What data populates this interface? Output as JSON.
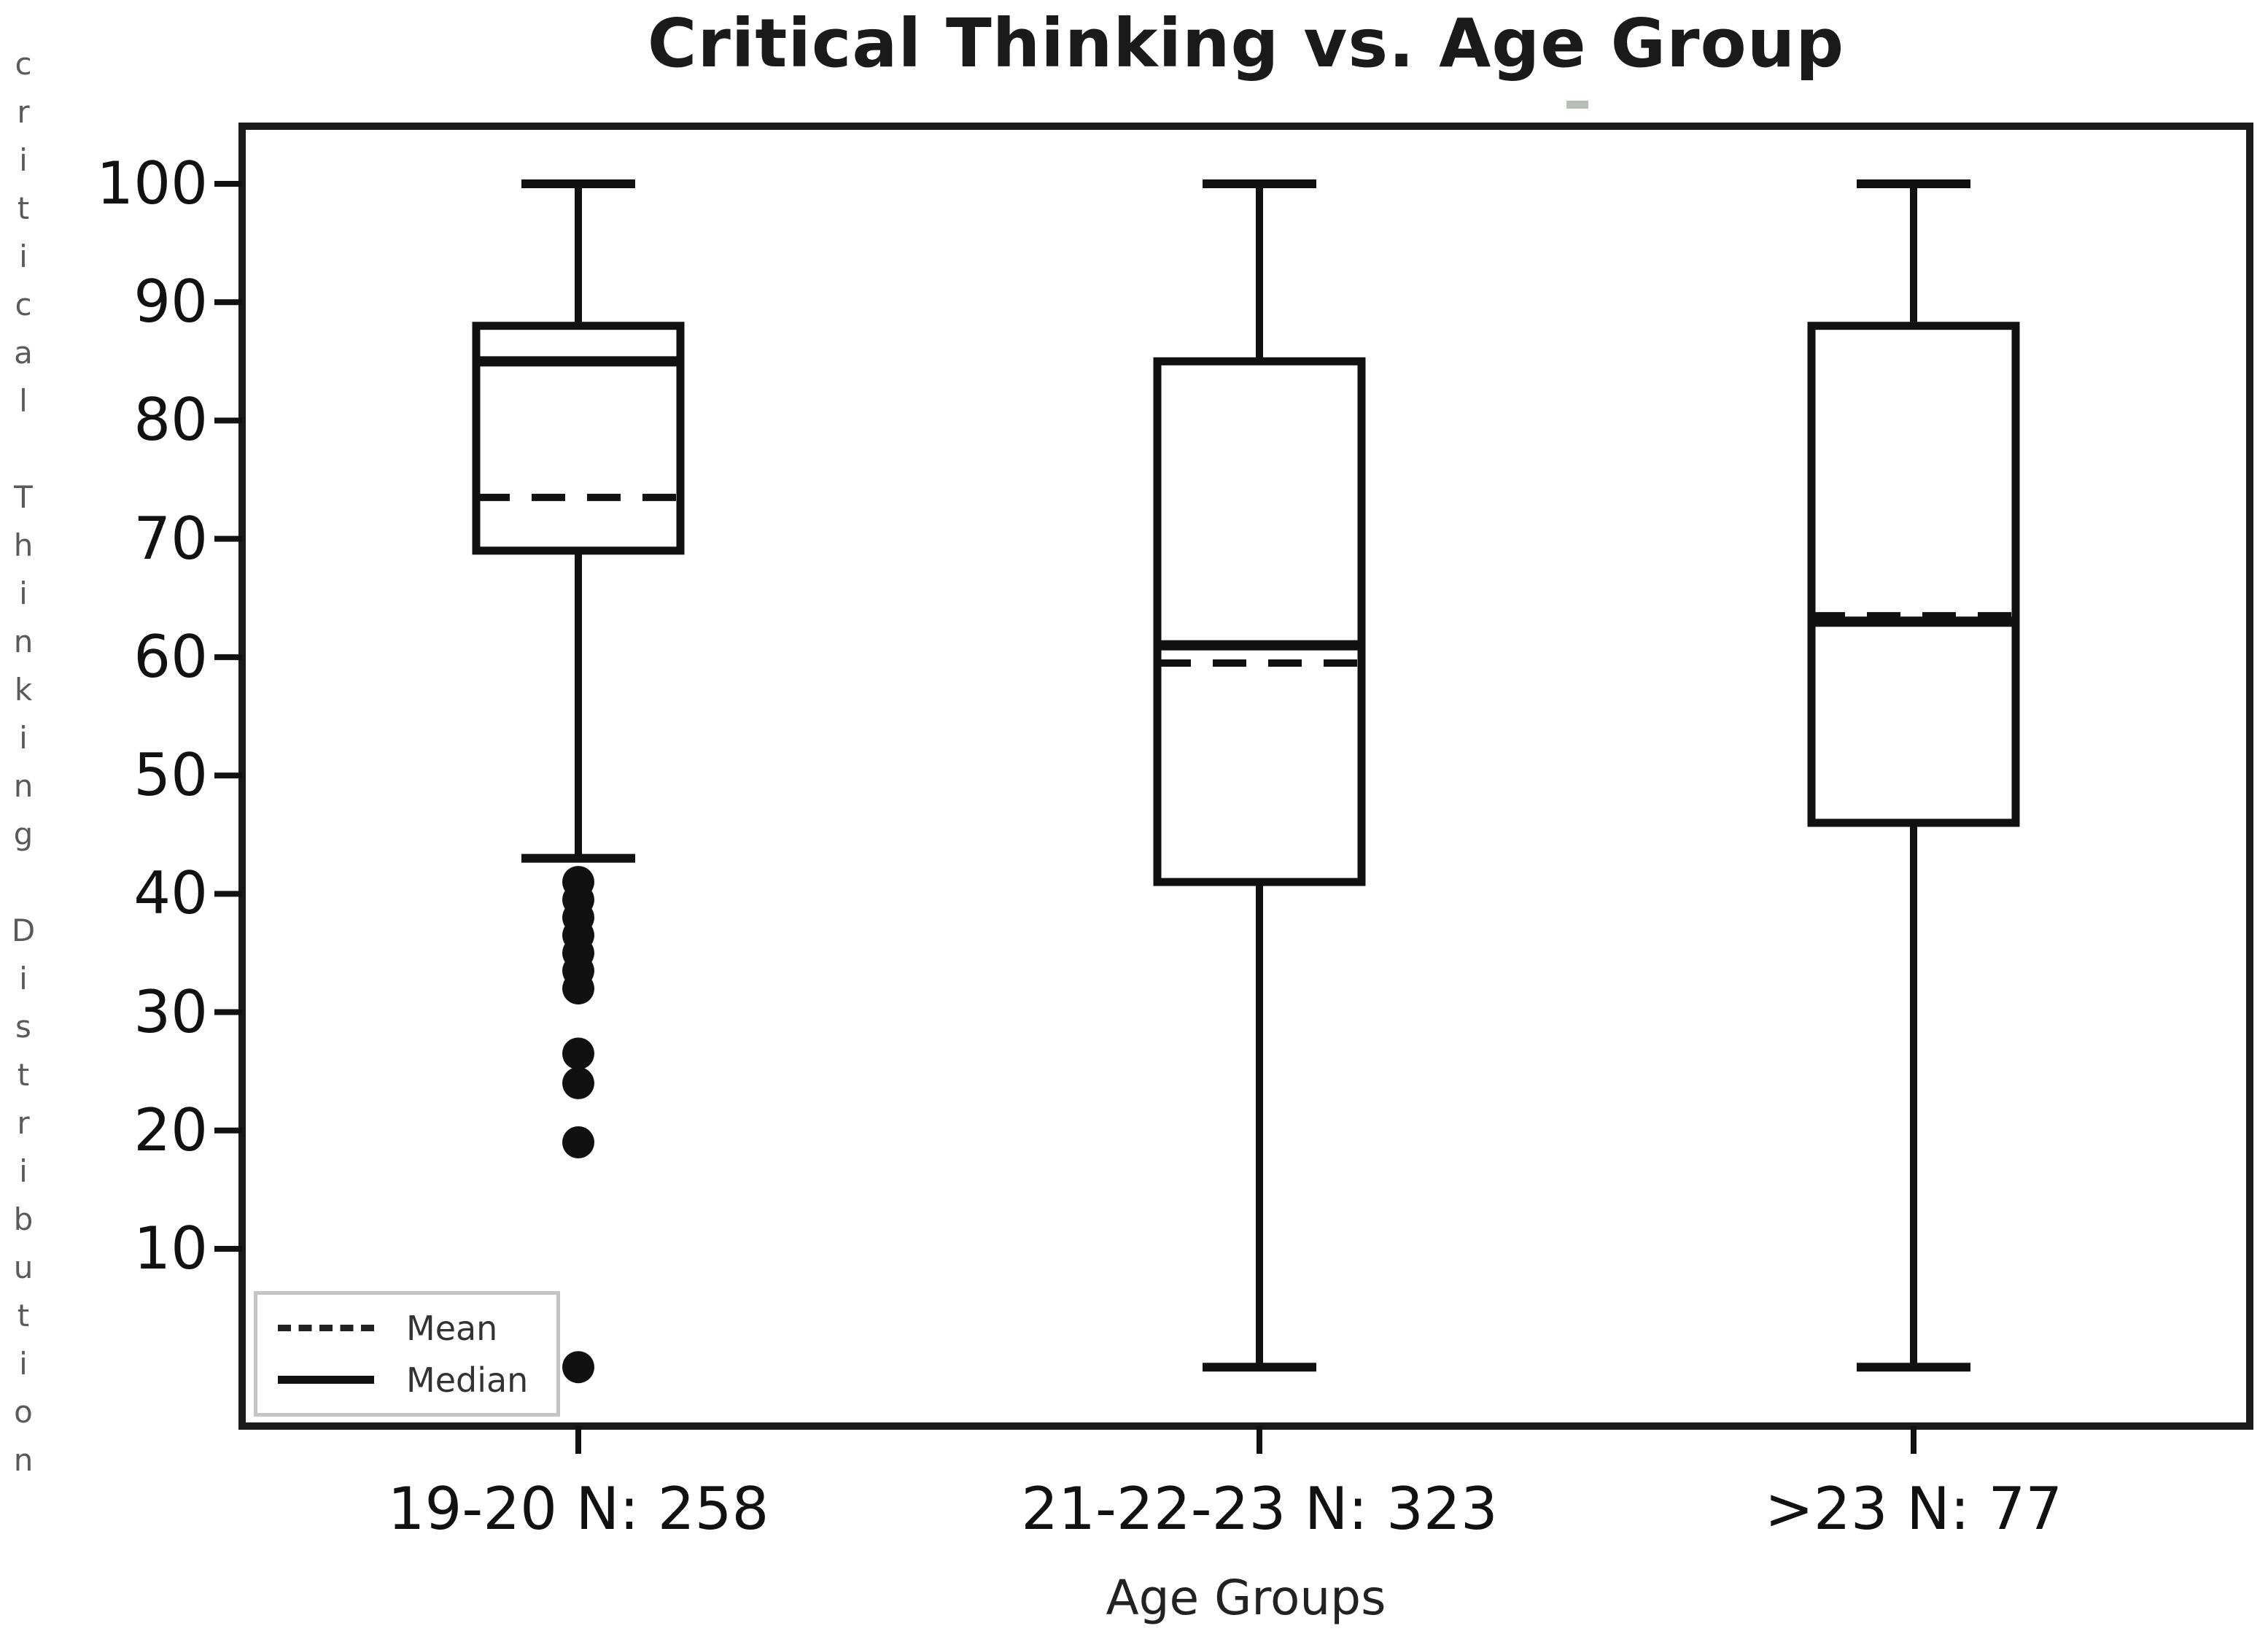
{
  "figure": {
    "background": "#ffffff",
    "line_color": "#111111",
    "spine_color": "#1a1a1a",
    "legend_border_color": "#c4c4c4",
    "ylabel_letter_color": "#5a5a5a"
  },
  "legend": {
    "mean_label": "Mean",
    "median_label": "Median",
    "position": "lower left",
    "mean_style": "dashed",
    "median_style": "solid"
  },
  "chart_data": {
    "type": "boxplot",
    "title": "Critical Thinking vs. Age Group",
    "xlabel": "Age Groups",
    "ylabel": "critical Thinking Distribution",
    "y_ticks": [
      100,
      90,
      80,
      70,
      60,
      50,
      40,
      30,
      20,
      10
    ],
    "ylim": [
      -5,
      105
    ],
    "grid": false,
    "legend_entries": [
      "Mean",
      "Median"
    ],
    "groups": [
      {
        "label": "19-20 N: 258",
        "n": 258,
        "whisker_low": 43,
        "q1": 69,
        "median": 85,
        "mean": 73.5,
        "q3": 88,
        "whisker_high": 100,
        "outliers": [
          41,
          39.5,
          38,
          36.5,
          35,
          33.5,
          32,
          26.5,
          24,
          19,
          0
        ]
      },
      {
        "label": "21-22-23 N: 323",
        "n": 323,
        "whisker_low": 0,
        "q1": 41,
        "median": 61,
        "mean": 59.5,
        "q3": 85,
        "whisker_high": 100,
        "outliers": []
      },
      {
        "label": ">23 N: 77",
        "n": 77,
        "whisker_low": 0,
        "q1": 46,
        "median": 63,
        "mean": 63.5,
        "q3": 88,
        "whisker_high": 100,
        "outliers": []
      }
    ]
  }
}
